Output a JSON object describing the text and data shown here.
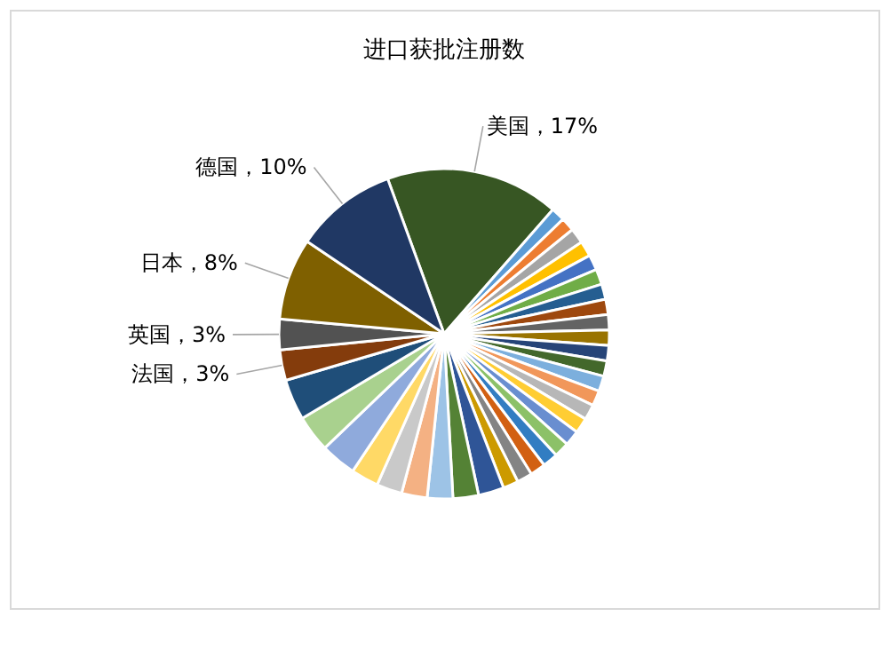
{
  "chart_data": {
    "type": "pie",
    "title": "进口获批注册数",
    "categories": [
      "美国，17%",
      null,
      null,
      null,
      null,
      null,
      null,
      null,
      null,
      null,
      null,
      null,
      null,
      null,
      null,
      null,
      null,
      null,
      null,
      null,
      null,
      null,
      null,
      null,
      null,
      null,
      null,
      null,
      null,
      null,
      null,
      null,
      "法国，3%",
      "英国，3%",
      "日本，8%",
      "德国，10%"
    ],
    "values": [
      17,
      1.35,
      1.35,
      1.5,
      1.5,
      1.5,
      1.5,
      1.5,
      1.5,
      1.5,
      1.5,
      1.5,
      1.5,
      1.5,
      1.5,
      1.5,
      1.5,
      1.5,
      1.5,
      1.5,
      1.5,
      1.5,
      1.5,
      2.5,
      2.5,
      2.5,
      2.5,
      2.5,
      2.7,
      3.5,
      3.6,
      4.0,
      3,
      3,
      8,
      10
    ],
    "colors": [
      "#375623",
      "#5b9bd5",
      "#ed7d31",
      "#a5a5a5",
      "#ffc000",
      "#4472c4",
      "#70ad47",
      "#255e91",
      "#9e480e",
      "#636363",
      "#997300",
      "#264478",
      "#43682b",
      "#7cafdd",
      "#f1975a",
      "#b7b7b7",
      "#ffcd33",
      "#698ed0",
      "#8cc168",
      "#327dc2",
      "#d26012",
      "#848484",
      "#cc9a00",
      "#2f5597",
      "#548235",
      "#9dc3e6",
      "#f4b183",
      "#c9c9c9",
      "#ffd966",
      "#8faadc",
      "#a9d18e",
      "#1f4e79",
      "#843c0c",
      "#525252",
      "#7f6000",
      "#203864"
    ]
  }
}
